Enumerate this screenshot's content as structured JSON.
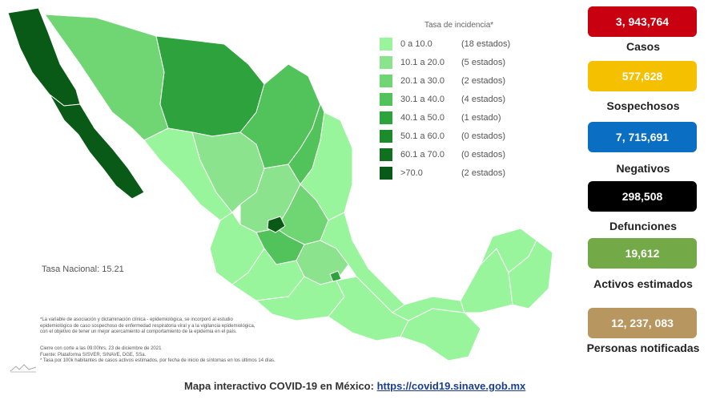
{
  "legend": {
    "title": "Tasa de incidencia*",
    "items": [
      {
        "range": "0   a  10.0",
        "count": "(18 estados)",
        "color": "#98f59b"
      },
      {
        "range": "10.1  a  20.0",
        "count": "(5 estados)",
        "color": "#8be38e"
      },
      {
        "range": "20.1  a  30.0",
        "count": "(2 estados)",
        "color": "#6fd673"
      },
      {
        "range": "30.1  a  40.0",
        "count": "(4 estados)",
        "color": "#52c25a"
      },
      {
        "range": "40.1  a  50.0",
        "count": "(1 estado)",
        "color": "#2ea23c"
      },
      {
        "range": "50.1  a  60.0",
        "count": "(0 estados)",
        "color": "#1d8a2c"
      },
      {
        "range": "60.1  a  70.0",
        "count": "(0 estados)",
        "color": "#117020"
      },
      {
        "range": ">70.0",
        "count": "(2 estados)",
        "color": "#0a5a17"
      }
    ]
  },
  "tasa_nacional": "Tasa Nacional: 15.21",
  "notes": {
    "lines": [
      "*La variable de asociación y dictaminación clínica - epidemiológica, se incorporó al estudio",
      "epidemiológico de caso sospechoso de enfermedad respiratoria viral y a la vigilancia epidemiológica,",
      "con el objetivo de tener un mejor acercamiento al comportamiento de la epidemia en el país."
    ],
    "cierre": "Cierre con corte a las 09:00hrs, 23 de diciembre de 2021",
    "fuente": "Fuente: Plataforma SISVER, SINAVE, DGE, SSa.",
    "tasa_note": "* Tasa por 100k habitantes de casos activos estimados, por fecha de inicio de síntomas en los últimos 14 días."
  },
  "footer": {
    "label": "Mapa interactivo COVID-19 en México:",
    "link": "https://covid19.sinave.gob.mx"
  },
  "stats": [
    {
      "value": "3, 943,764",
      "label": "Casos",
      "color": "#c8000f",
      "text_color": "#ffffff"
    },
    {
      "value": "577,628",
      "label": "Sospechosos",
      "color": "#f5c000",
      "text_color": "#ffffff"
    },
    {
      "value": "7, 715,691",
      "label": "Negativos",
      "color": "#0a6fc2",
      "text_color": "#ffffff"
    },
    {
      "value": "298,508",
      "label": "Defunciones",
      "color": "#000000",
      "text_color": "#ffffff"
    },
    {
      "value": "19,612",
      "label": "Activos estimados",
      "color": "#73a946",
      "text_color": "#ffffff"
    },
    {
      "value": "12, 237, 083",
      "label": "Personas notificadas",
      "color": "#b89660",
      "text_color": "#ffffff"
    }
  ]
}
